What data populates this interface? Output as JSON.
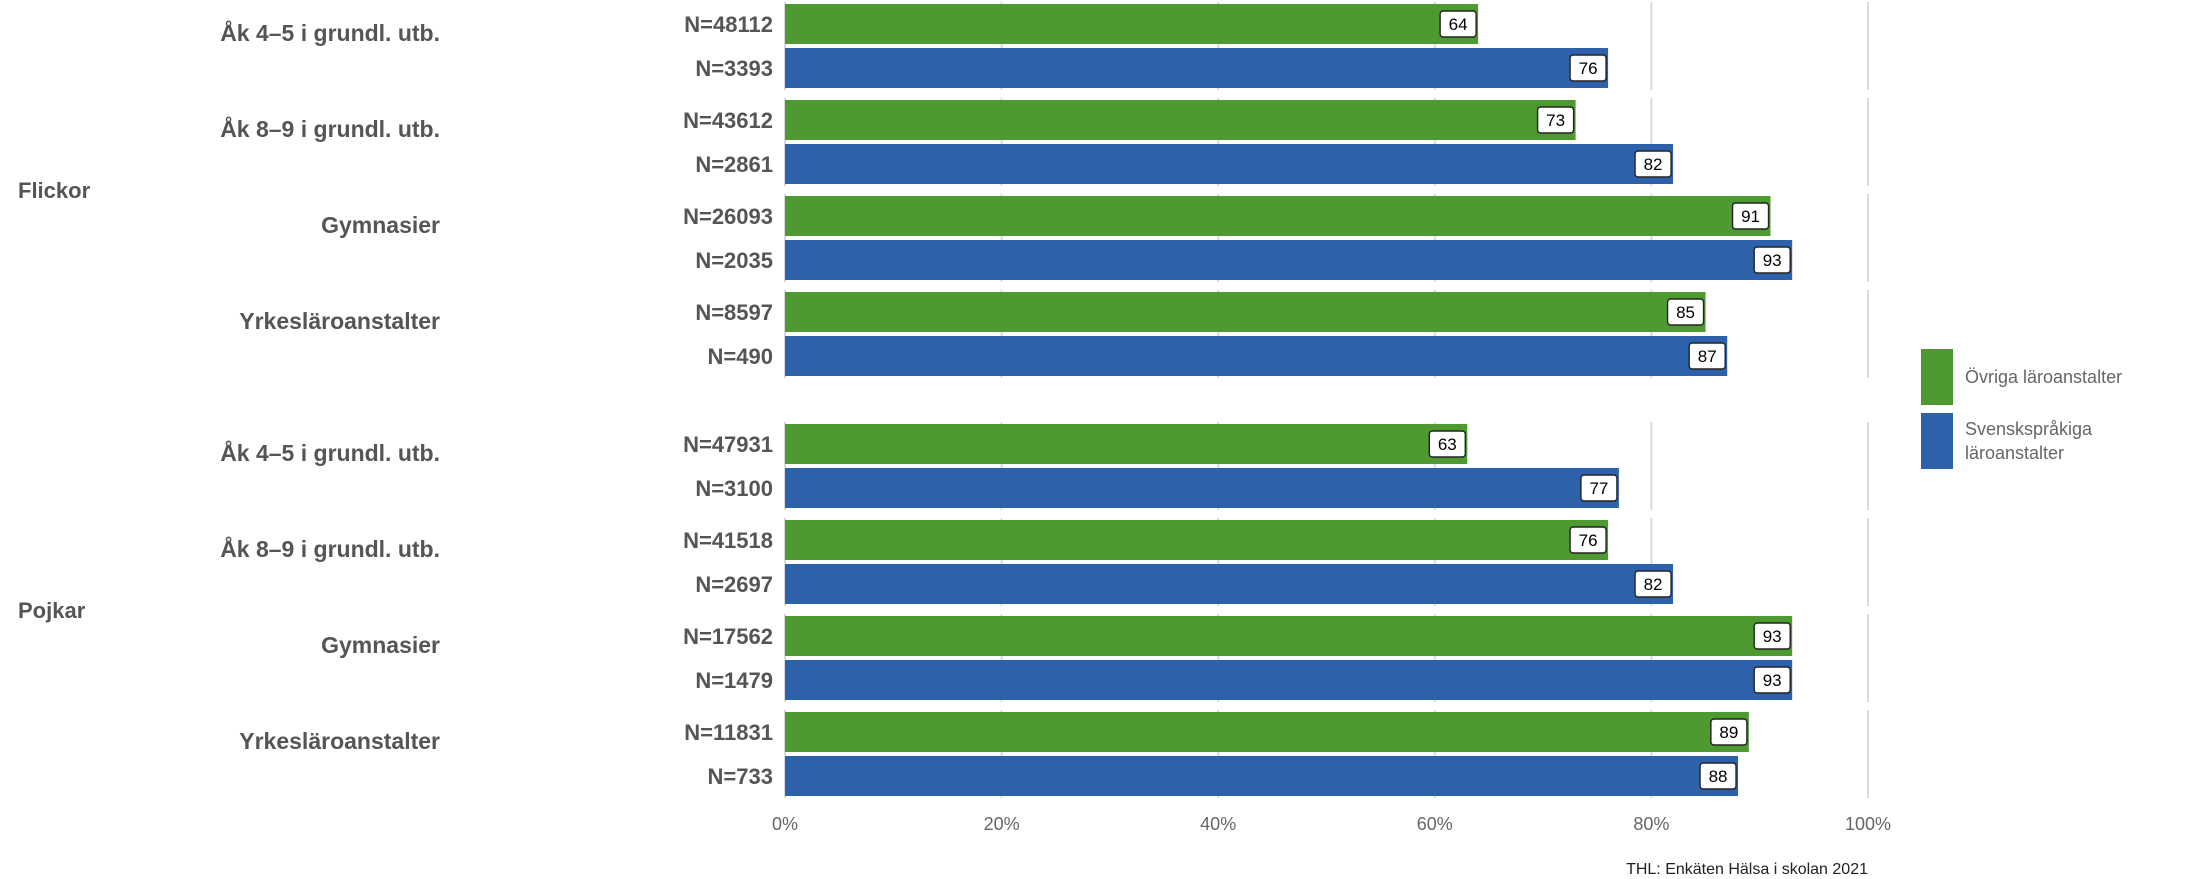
{
  "chart_data": {
    "type": "bar",
    "orientation": "horizontal",
    "source_note": "THL: Enkäten Hälsa i skolan 2021",
    "x_ticks": [
      "0%",
      "20%",
      "40%",
      "60%",
      "80%",
      "100%"
    ],
    "xlim": [
      0,
      100
    ],
    "grid": true,
    "legend_position": "right",
    "series": [
      {
        "name": "Övriga läroanstalter",
        "color": "#4e9a31"
      },
      {
        "name": "Svenskspråkiga läroanstalter",
        "color": "#2d62ab",
        "label_lines": [
          "Svenskspråkiga",
          "läroanstalter"
        ]
      }
    ],
    "groups": [
      {
        "name": "Flickor",
        "categories": [
          {
            "label": "Åk 4–5 i grundl. utb.",
            "bars": [
              {
                "n": "N=48112",
                "value": 64
              },
              {
                "n": "N=3393",
                "value": 76
              }
            ]
          },
          {
            "label": "Åk 8–9 i grundl. utb.",
            "bars": [
              {
                "n": "N=43612",
                "value": 73
              },
              {
                "n": "N=2861",
                "value": 82
              }
            ]
          },
          {
            "label": "Gymnasier",
            "bars": [
              {
                "n": "N=26093",
                "value": 91
              },
              {
                "n": "N=2035",
                "value": 93
              }
            ]
          },
          {
            "label": "Yrkesläroanstalter",
            "bars": [
              {
                "n": "N=8597",
                "value": 85
              },
              {
                "n": "N=490",
                "value": 87
              }
            ]
          }
        ]
      },
      {
        "name": "Pojkar",
        "categories": [
          {
            "label": "Åk 4–5 i grundl. utb.",
            "bars": [
              {
                "n": "N=47931",
                "value": 63
              },
              {
                "n": "N=3100",
                "value": 77
              }
            ]
          },
          {
            "label": "Åk 8–9 i grundl. utb.",
            "bars": [
              {
                "n": "N=41518",
                "value": 76
              },
              {
                "n": "N=2697",
                "value": 82
              }
            ]
          },
          {
            "label": "Gymnasier",
            "bars": [
              {
                "n": "N=17562",
                "value": 93
              },
              {
                "n": "N=1479",
                "value": 93
              }
            ]
          },
          {
            "label": "Yrkesläroanstalter",
            "bars": [
              {
                "n": "N=11831",
                "value": 89
              },
              {
                "n": "N=733",
                "value": 88
              }
            ]
          }
        ]
      }
    ]
  }
}
